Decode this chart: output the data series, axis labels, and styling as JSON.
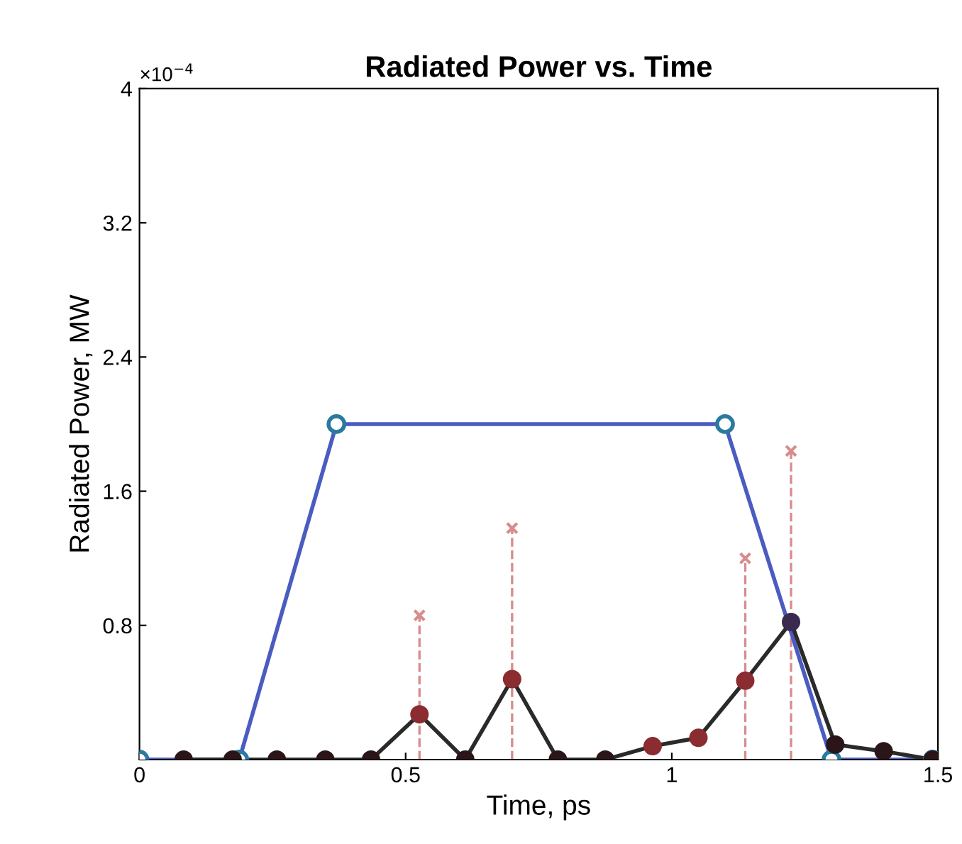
{
  "chart_data": {
    "type": "line",
    "title": "Radiated Power vs. Time",
    "xlabel": "Time, ps",
    "ylabel": "Radiated Power, MW",
    "annotations": [
      "×10$^{−4}$"
    ],
    "xlim": [
      0,
      1.5
    ],
    "xticks": [
      0,
      0.5,
      1,
      1.5
    ],
    "ylim": [
      0,
      4
    ],
    "yticks": [
      {
        "value": 0,
        "label": null
      },
      0.8,
      1.6,
      2.4,
      3.2,
      4
    ],
    "grid": false,
    "series": [
      {
        "type": "lollipop",
        "color": "#d88c8c",
        "marker": "cross",
        "line_style": "dashed",
        "x": [
          0.526,
          0.7,
          1.138,
          1.224
        ],
        "values": [
          0.86,
          1.38,
          1.2,
          1.84
        ]
      },
      {
        "color": "#4a5cc0",
        "marker": "circle",
        "line_style": "solid",
        "x": [
          0,
          0.1875,
          0.37,
          1.1,
          1.3,
          1.49
        ],
        "values": [
          0,
          0,
          2.0,
          2.0,
          0,
          0
        ]
      },
      {
        "color": "#2a2a2a",
        "marker": "circle",
        "line_style": "solid",
        "x": [
          0.083,
          0.175,
          0.258,
          0.349,
          0.435,
          0.526,
          0.612,
          0.7,
          0.786,
          0.875,
          0.964,
          1.05,
          1.138,
          1.224,
          1.307,
          1.398,
          1.49
        ],
        "values": [
          0,
          0,
          0,
          0,
          0,
          0.27,
          0,
          0.48,
          0,
          0,
          0.08,
          0.13,
          0.47,
          0.82,
          0.09,
          0.05,
          0
        ],
        "colors": [
          "#2a1518",
          "#2a1518",
          "#2a1518",
          "#2a1518",
          "#2a1518",
          "#8b2c30",
          "#2a1518",
          "#8b2c30",
          "#2a1518",
          "#2a1518",
          "#8b2c30",
          "#8b2c30",
          "#8b2c30",
          "#3a2a50",
          "#2a1518",
          "#2a1518",
          "#2a1518"
        ]
      }
    ]
  }
}
